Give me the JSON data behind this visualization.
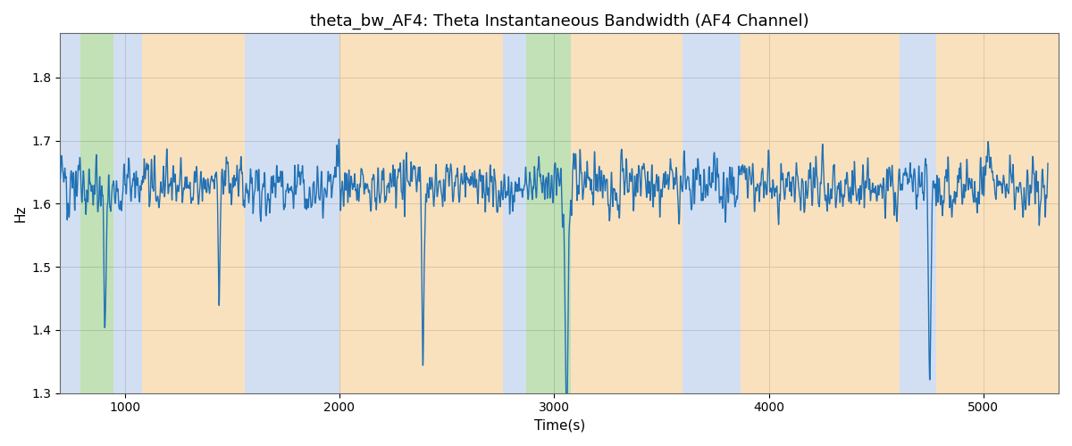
{
  "title": "theta_bw_AF4: Theta Instantaneous Bandwidth (AF4 Channel)",
  "xlabel": "Time(s)",
  "ylabel": "Hz",
  "ylim": [
    1.3,
    1.87
  ],
  "xlim": [
    700,
    5350
  ],
  "line_color": "#2171b5",
  "line_width": 1.0,
  "bg_color": "white",
  "grid_color": "#c0c0c0",
  "title_fontsize": 13,
  "label_fontsize": 11,
  "regions": [
    {
      "xmin": 700,
      "xmax": 795,
      "color": "#aec6e8",
      "alpha": 0.55
    },
    {
      "xmin": 795,
      "xmax": 950,
      "color": "#90c97a",
      "alpha": 0.55
    },
    {
      "xmin": 950,
      "xmax": 1080,
      "color": "#aec6e8",
      "alpha": 0.55
    },
    {
      "xmin": 1080,
      "xmax": 1560,
      "color": "#f5c98a",
      "alpha": 0.55
    },
    {
      "xmin": 1560,
      "xmax": 2000,
      "color": "#aec6e8",
      "alpha": 0.55
    },
    {
      "xmin": 2000,
      "xmax": 2760,
      "color": "#f5c98a",
      "alpha": 0.55
    },
    {
      "xmin": 2760,
      "xmax": 2870,
      "color": "#aec6e8",
      "alpha": 0.55
    },
    {
      "xmin": 2870,
      "xmax": 3080,
      "color": "#90c97a",
      "alpha": 0.55
    },
    {
      "xmin": 3080,
      "xmax": 3600,
      "color": "#f5c98a",
      "alpha": 0.55
    },
    {
      "xmin": 3600,
      "xmax": 3870,
      "color": "#aec6e8",
      "alpha": 0.55
    },
    {
      "xmin": 3870,
      "xmax": 4610,
      "color": "#f5c98a",
      "alpha": 0.55
    },
    {
      "xmin": 4610,
      "xmax": 4780,
      "color": "#aec6e8",
      "alpha": 0.55
    },
    {
      "xmin": 4780,
      "xmax": 5350,
      "color": "#f5c98a",
      "alpha": 0.55
    }
  ],
  "seed": 12345,
  "n_points": 4600,
  "x_start": 700,
  "x_end": 5300
}
